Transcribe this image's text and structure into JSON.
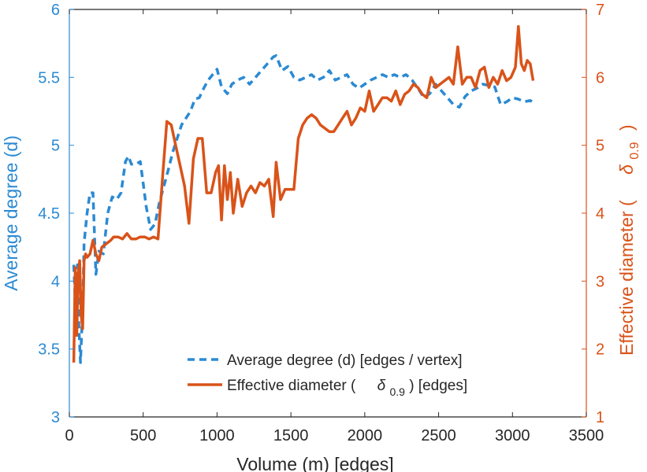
{
  "colors": {
    "left_axis": "#2B8AD3",
    "right_axis": "#D95319",
    "axis_dark": "#262626",
    "background": "#ffffff"
  },
  "chart_data": {
    "type": "line",
    "xlabel": "Volume (m) [edges]",
    "ylabel_left": "Average degree (d)",
    "ylabel_right_main": "Effective diameter (",
    "ylabel_right_symbol": "δ",
    "ylabel_right_subscript": "0.9",
    "ylabel_right_close": ")",
    "xlim": [
      0,
      3500
    ],
    "ylim_left": [
      3,
      6
    ],
    "ylim_right": [
      1,
      7
    ],
    "x_ticks": [
      0,
      500,
      1000,
      1500,
      2000,
      2500,
      3000,
      3500
    ],
    "x_tick_labels": [
      "0",
      "500",
      "1000",
      "1500",
      "2000",
      "2500",
      "3000",
      "3500"
    ],
    "y_left_ticks": [
      3,
      3.5,
      4,
      4.5,
      5,
      5.5,
      6
    ],
    "y_left_tick_labels": [
      "3",
      "3.5",
      "4",
      "4.5",
      "5",
      "5.5",
      "6"
    ],
    "y_right_ticks": [
      1,
      2,
      3,
      4,
      5,
      6,
      7
    ],
    "y_right_tick_labels": [
      "1",
      "2",
      "3",
      "4",
      "5",
      "6",
      "7"
    ],
    "legend_position": "bottom-right",
    "series": [
      {
        "name": "Average degree (d) [edges / vertex]",
        "axis": "left",
        "style": "dashed",
        "x": [
          30,
          45,
          55,
          65,
          75,
          90,
          100,
          120,
          140,
          160,
          180,
          200,
          230,
          260,
          290,
          320,
          350,
          380,
          400,
          420,
          450,
          480,
          500,
          520,
          550,
          580,
          610,
          640,
          670,
          700,
          730,
          760,
          790,
          820,
          850,
          880,
          910,
          940,
          970,
          1000,
          1030,
          1070,
          1100,
          1140,
          1180,
          1220,
          1260,
          1300,
          1340,
          1380,
          1400,
          1440,
          1480,
          1520,
          1560,
          1600,
          1640,
          1680,
          1720,
          1760,
          1800,
          1840,
          1880,
          1920,
          1960,
          2000,
          2040,
          2080,
          2120,
          2160,
          2200,
          2240,
          2280,
          2320,
          2360,
          2400,
          2440,
          2480,
          2520,
          2560,
          2600,
          2640,
          2680,
          2720,
          2760,
          2800,
          2840,
          2880,
          2920,
          2960,
          3000,
          3040,
          3080,
          3120,
          3150
        ],
        "values": [
          4.12,
          3.72,
          4.12,
          3.65,
          3.4,
          3.8,
          4.28,
          4.5,
          4.65,
          4.65,
          4.05,
          4.22,
          4.2,
          4.5,
          4.62,
          4.6,
          4.65,
          4.88,
          4.92,
          4.86,
          4.86,
          4.88,
          4.72,
          4.55,
          4.38,
          4.42,
          4.58,
          4.7,
          4.82,
          4.95,
          5.05,
          5.15,
          5.2,
          5.25,
          5.34,
          5.35,
          5.42,
          5.48,
          5.52,
          5.56,
          5.43,
          5.38,
          5.45,
          5.48,
          5.5,
          5.45,
          5.5,
          5.55,
          5.6,
          5.65,
          5.66,
          5.55,
          5.58,
          5.5,
          5.48,
          5.5,
          5.52,
          5.48,
          5.5,
          5.55,
          5.48,
          5.5,
          5.52,
          5.45,
          5.42,
          5.45,
          5.48,
          5.5,
          5.52,
          5.5,
          5.52,
          5.5,
          5.52,
          5.48,
          5.42,
          5.35,
          5.38,
          5.45,
          5.4,
          5.35,
          5.3,
          5.28,
          5.36,
          5.4,
          5.42,
          5.45,
          5.44,
          5.43,
          5.3,
          5.32,
          5.35,
          5.34,
          5.32,
          5.33,
          5.31
        ]
      },
      {
        "name": "Effective diameter (δ0.9) [edges]",
        "name_prefix": "Effective diameter (",
        "name_symbol": "δ",
        "name_subscript": "0.9",
        "name_suffix": ") [edges]",
        "axis": "right",
        "style": "solid",
        "x": [
          30,
          40,
          50,
          60,
          70,
          80,
          90,
          100,
          110,
          120,
          140,
          160,
          180,
          200,
          220,
          250,
          280,
          300,
          330,
          360,
          390,
          420,
          450,
          480,
          510,
          540,
          570,
          600,
          630,
          660,
          690,
          720,
          750,
          780,
          810,
          840,
          870,
          900,
          930,
          960,
          990,
          1010,
          1030,
          1050,
          1070,
          1090,
          1110,
          1140,
          1170,
          1200,
          1230,
          1260,
          1290,
          1320,
          1350,
          1380,
          1400,
          1430,
          1460,
          1490,
          1520,
          1550,
          1580,
          1610,
          1640,
          1670,
          1700,
          1730,
          1760,
          1790,
          1820,
          1850,
          1880,
          1910,
          1940,
          1970,
          2000,
          2030,
          2060,
          2090,
          2120,
          2150,
          2180,
          2210,
          2240,
          2270,
          2300,
          2330,
          2360,
          2390,
          2420,
          2450,
          2480,
          2510,
          2540,
          2570,
          2600,
          2630,
          2660,
          2690,
          2720,
          2750,
          2780,
          2810,
          2840,
          2870,
          2900,
          2930,
          2960,
          2990,
          3020,
          3040,
          3060,
          3080,
          3100,
          3120,
          3140
        ],
        "values": [
          1.8,
          3.2,
          2.2,
          3.1,
          3.3,
          2.5,
          2.3,
          3.3,
          3.4,
          3.35,
          3.4,
          3.6,
          3.4,
          3.3,
          3.5,
          3.55,
          3.6,
          3.65,
          3.65,
          3.62,
          3.7,
          3.62,
          3.62,
          3.65,
          3.65,
          3.62,
          3.65,
          3.62,
          4.5,
          5.35,
          5.3,
          5.0,
          4.7,
          4.4,
          3.85,
          4.8,
          5.1,
          5.1,
          4.3,
          4.3,
          4.6,
          4.7,
          3.9,
          4.7,
          4.2,
          4.6,
          4.0,
          4.5,
          4.1,
          4.3,
          4.4,
          4.3,
          4.45,
          4.4,
          4.5,
          3.95,
          4.75,
          4.2,
          4.35,
          4.35,
          4.35,
          5.1,
          5.3,
          5.4,
          5.45,
          5.4,
          5.3,
          5.25,
          5.2,
          5.2,
          5.3,
          5.4,
          5.5,
          5.3,
          5.4,
          5.55,
          5.5,
          5.8,
          5.5,
          5.6,
          5.7,
          5.7,
          5.65,
          5.8,
          5.6,
          5.75,
          5.8,
          5.9,
          5.85,
          5.75,
          5.7,
          6.0,
          5.85,
          5.9,
          5.95,
          6.0,
          5.9,
          6.45,
          5.9,
          6.0,
          6.0,
          5.85,
          6.1,
          6.15,
          5.85,
          6.0,
          5.9,
          6.1,
          5.95,
          6.0,
          6.15,
          6.75,
          6.2,
          6.1,
          6.25,
          6.2,
          5.95
        ]
      }
    ]
  }
}
